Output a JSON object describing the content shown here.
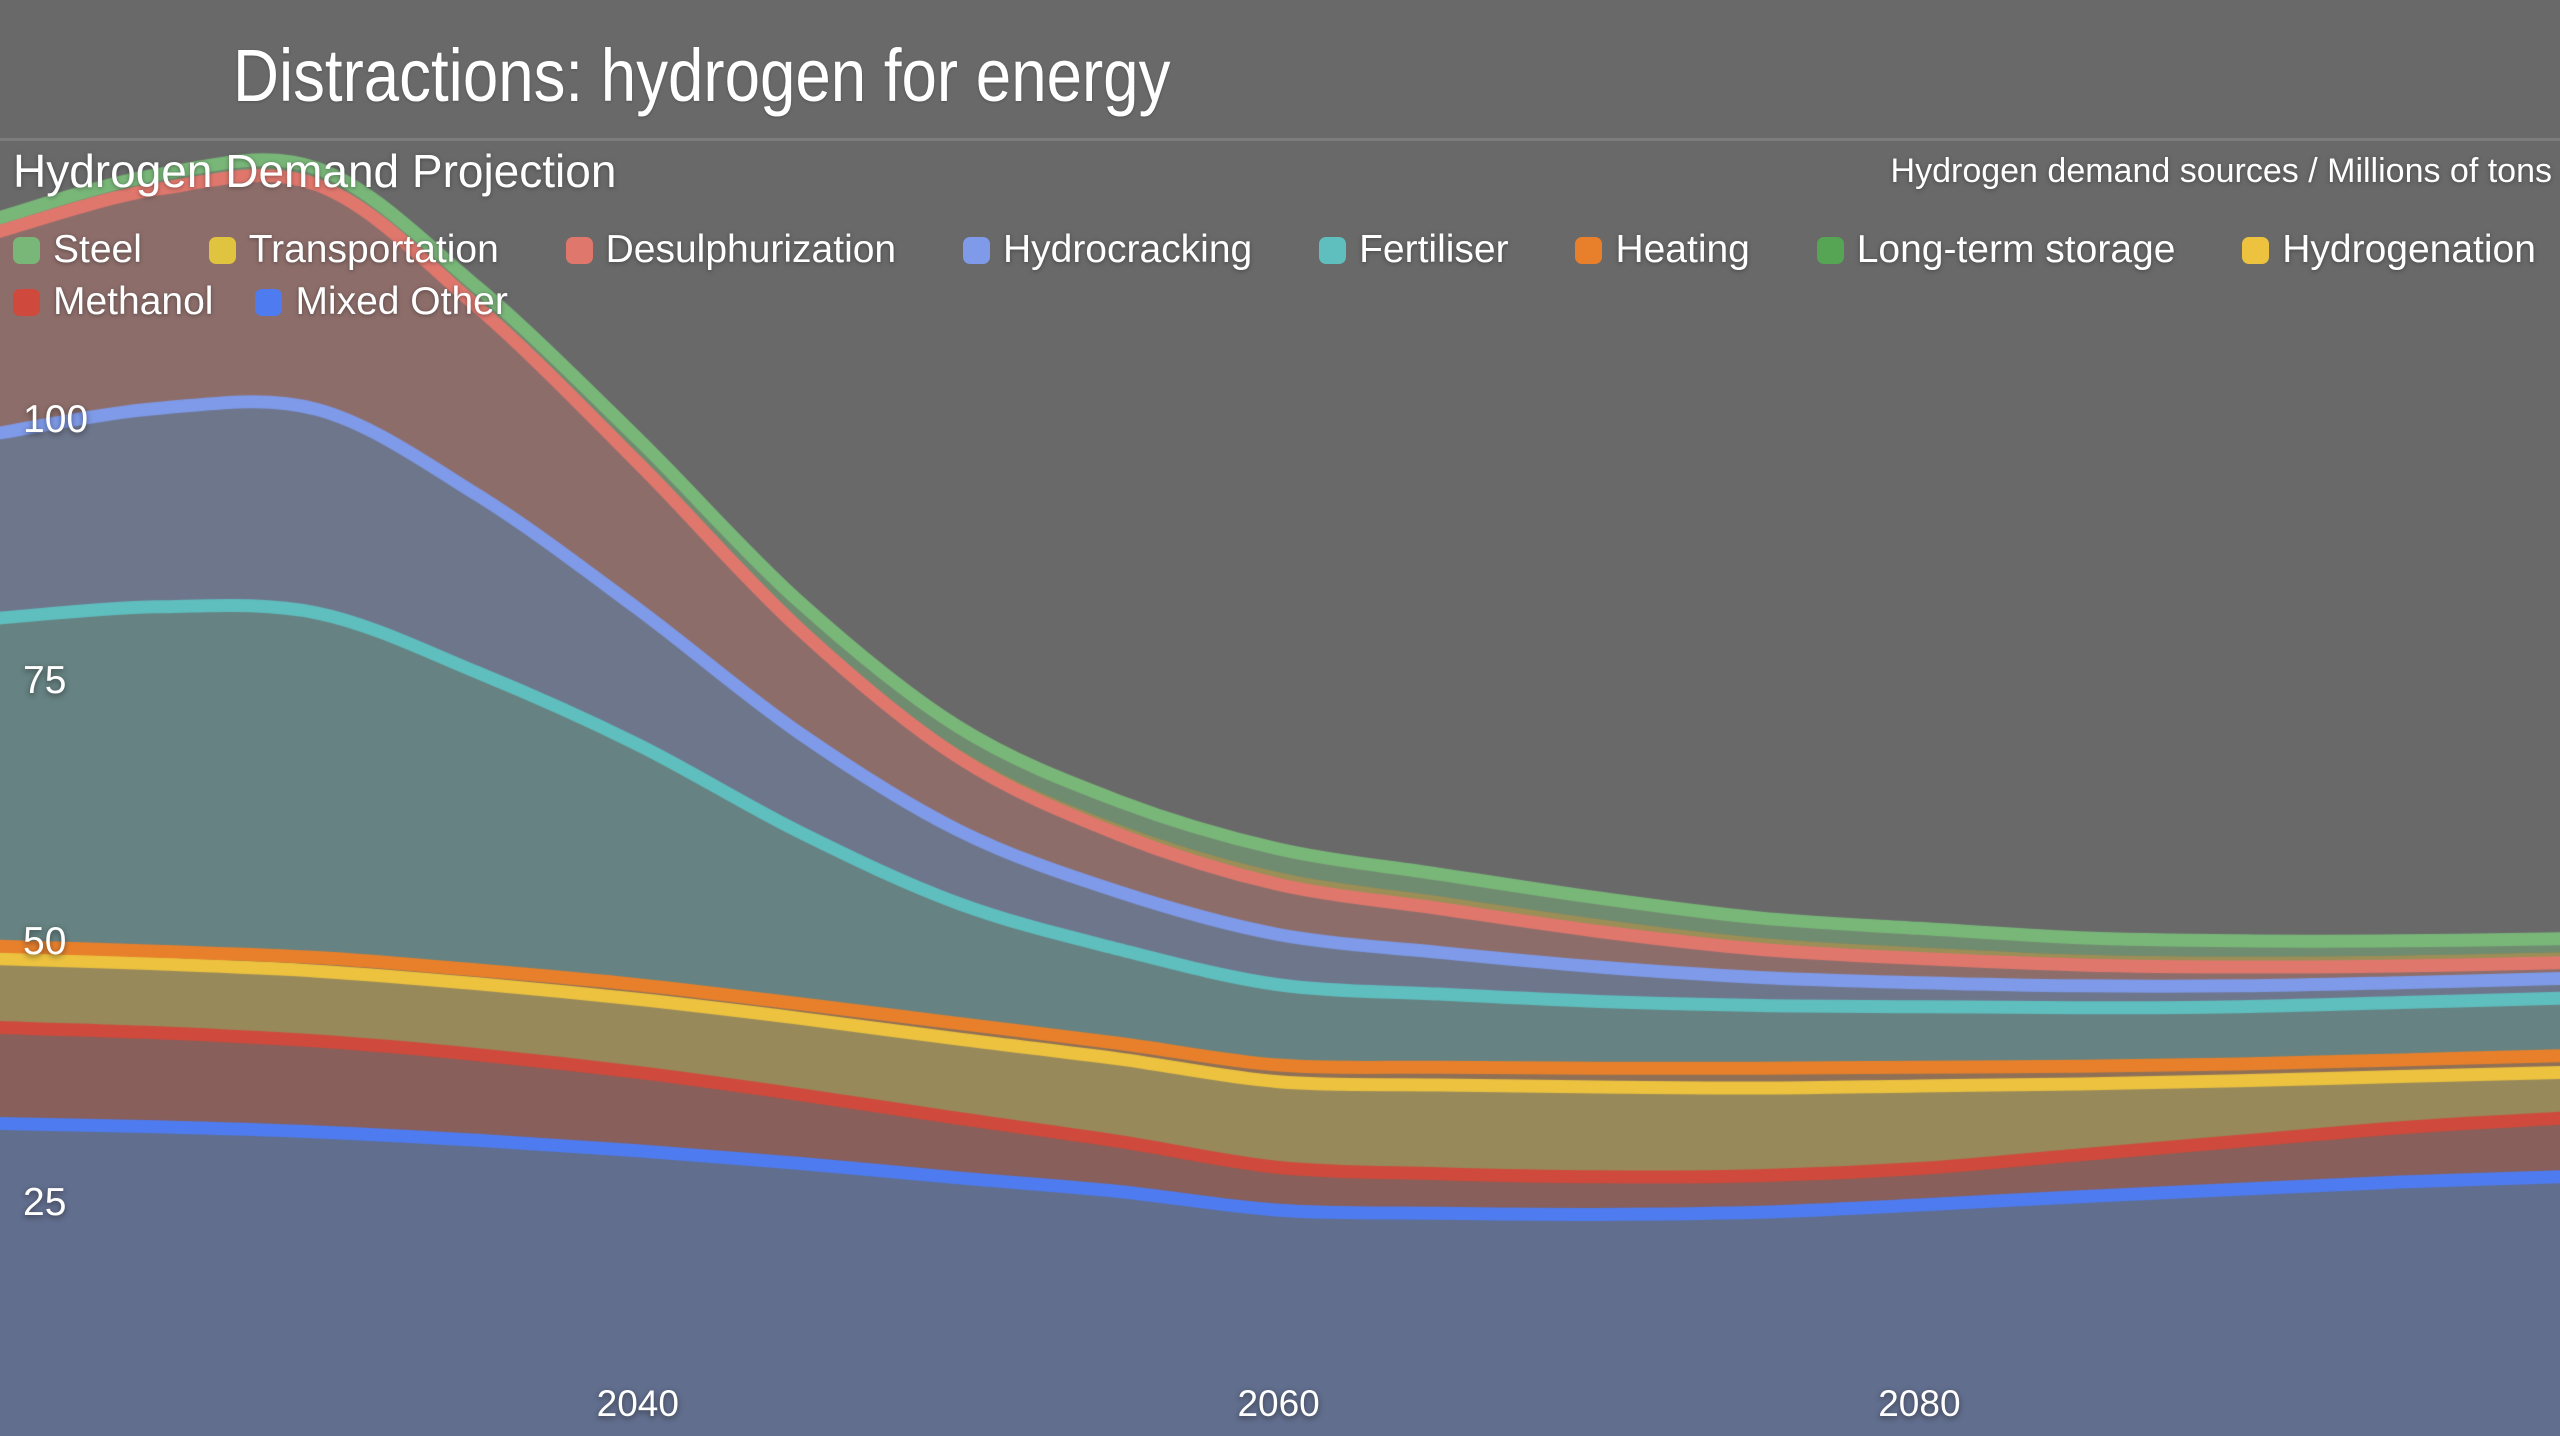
{
  "title": "Distractions: hydrogen for energy",
  "chart_header": {
    "left": "Hydrogen Demand Projection",
    "right": "Hydrogen demand sources / Millions of tons"
  },
  "colors": {
    "background": "#696969",
    "divider": "#7c7c7c",
    "text": "#ffffff"
  },
  "chart_data": {
    "type": "area",
    "stacked": true,
    "title": "Hydrogen Demand Projection",
    "units_caption": "Hydrogen demand sources / Millions of tons",
    "grid": false,
    "legend_position": "top",
    "x": [
      2020,
      2025,
      2030,
      2035,
      2040,
      2045,
      2050,
      2055,
      2060,
      2065,
      2070,
      2075,
      2080,
      2085,
      2090,
      2095,
      2100
    ],
    "x_axis": {
      "ticks": [
        "2040",
        "2060",
        "2080"
      ],
      "tick_years": [
        2040,
        2060,
        2080
      ]
    },
    "y_axis": {
      "ticks": [
        "25",
        "50",
        "75",
        "100"
      ],
      "tick_values": [
        25,
        50,
        75,
        100
      ],
      "range_visible": [
        3,
        140
      ]
    },
    "stack_order_note": "legend order top-of-stack to bottom-of-stack",
    "series": [
      {
        "label": "Steel",
        "color": "#79b779",
        "fill_alpha": 0.45,
        "stroke": true,
        "legend_row": 1,
        "values": [
          1.3,
          1.4,
          1.5,
          1.7,
          1.9,
          2.0,
          2.1,
          2.2,
          2.2,
          2.1,
          2.0,
          1.9,
          1.8,
          1.6,
          1.5,
          1.4,
          1.3
        ]
      },
      {
        "label": "Transportation",
        "color": "#e0c33f",
        "fill_alpha": 0.42,
        "stroke": false,
        "legend_row": 1,
        "values": [
          0,
          0,
          0.1,
          0.2,
          0.4,
          0.6,
          0.8,
          1.0,
          1.2,
          1.2,
          1.2,
          1.1,
          1.1,
          1.0,
          1.0,
          1.0,
          1.0
        ]
      },
      {
        "label": "Desulphurization",
        "color": "#e0776d",
        "fill_alpha": 0.3,
        "stroke": true,
        "legend_row": 1,
        "values": [
          19.3,
          21.0,
          21.5,
          18.0,
          14.0,
          10.0,
          7.0,
          5.5,
          4.8,
          4.2,
          3.4,
          2.7,
          2.3,
          2.0,
          1.8,
          1.6,
          1.5
        ]
      },
      {
        "label": "Hydrocracking",
        "color": "#7e9ae8",
        "fill_alpha": 0.28,
        "stroke": true,
        "legend_row": 1,
        "values": [
          17.7,
          19.0,
          19.5,
          17.0,
          13.0,
          9.5,
          7.0,
          5.5,
          4.8,
          4.0,
          3.3,
          2.7,
          2.3,
          2.1,
          2.0,
          1.9,
          1.9
        ]
      },
      {
        "label": "Fertiliser",
        "color": "#5fbebe",
        "fill_alpha": 0.3,
        "stroke": true,
        "legend_row": 1,
        "values": [
          31.4,
          33.0,
          33.0,
          28.5,
          23.0,
          16.5,
          11.5,
          9.0,
          7.7,
          7.0,
          6.4,
          6.0,
          5.8,
          5.6,
          5.5,
          5.5,
          5.5
        ]
      },
      {
        "label": "Heating",
        "color": "#e8802b",
        "fill_alpha": 0.3,
        "stroke": true,
        "legend_row": 1,
        "values": [
          1.2,
          1.2,
          1.3,
          1.3,
          1.4,
          1.4,
          1.5,
          1.5,
          1.6,
          1.7,
          1.8,
          1.9,
          1.8,
          1.7,
          1.6,
          1.6,
          1.6
        ]
      },
      {
        "label": "Long-term storage",
        "color": "#55a555",
        "fill_alpha": 0.3,
        "stroke": false,
        "legend_row": 1,
        "values": [
          0,
          0,
          0,
          0,
          0,
          0,
          0,
          0,
          0,
          0,
          0,
          0,
          0,
          0,
          0,
          0,
          0
        ]
      },
      {
        "label": "Hydrogenation",
        "color": "#ecc23f",
        "fill_alpha": 0.36,
        "stroke": true,
        "legend_row": 1,
        "values": [
          6.6,
          6.6,
          6.7,
          6.8,
          7.0,
          7.3,
          7.6,
          7.9,
          8.2,
          8.5,
          8.6,
          8.4,
          7.9,
          6.8,
          5.8,
          4.9,
          4.4
        ]
      },
      {
        "label": "Methanol",
        "color": "#cf4a3c",
        "fill_alpha": 0.3,
        "stroke": true,
        "legend_row": 2,
        "values": [
          9.2,
          9.0,
          8.7,
          8.2,
          7.5,
          6.6,
          5.7,
          4.8,
          4.1,
          3.8,
          3.6,
          3.5,
          3.5,
          4.0,
          4.6,
          5.2,
          5.6
        ]
      },
      {
        "label": "Mixed Other",
        "color": "#4e7cf0",
        "fill_alpha": 0.28,
        "stroke": true,
        "legend_row": 2,
        "values": [
          32.8,
          32.5,
          32.0,
          31.2,
          30.2,
          29.0,
          27.6,
          26.3,
          24.5,
          24.2,
          24.1,
          24.3,
          25.0,
          25.8,
          26.5,
          27.2,
          27.7
        ]
      }
    ]
  }
}
